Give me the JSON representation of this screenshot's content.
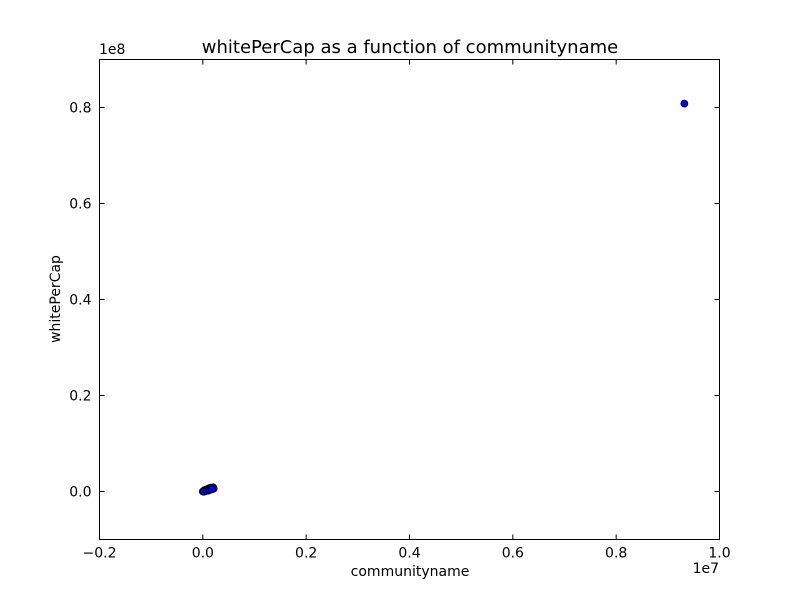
{
  "chart_data": {
    "type": "scatter",
    "title": "whitePerCap as a function of communityname",
    "xlabel": "communityname",
    "ylabel": "whitePerCap",
    "x_multiplier": "1e7",
    "y_multiplier": "1e8",
    "xlim": [
      -2000000,
      10000000
    ],
    "ylim": [
      -10000000,
      90000000
    ],
    "x_ticks": [
      -2000000,
      0,
      2000000,
      4000000,
      6000000,
      8000000,
      10000000
    ],
    "x_tick_labels": [
      "−0.2",
      "0.0",
      "0.2",
      "0.4",
      "0.6",
      "0.8",
      "1.0"
    ],
    "y_ticks": [
      0,
      20000000,
      40000000,
      60000000,
      80000000
    ],
    "y_tick_labels": [
      "0.0",
      "0.2",
      "0.4",
      "0.6",
      "0.8"
    ],
    "grid": false,
    "marker_color": "#0000ff",
    "points": [
      {
        "x": 9320000,
        "y": 80800000
      },
      {
        "x": 0,
        "y": 0
      },
      {
        "x": 15000,
        "y": 100000
      },
      {
        "x": 30000,
        "y": 250000
      },
      {
        "x": 45000,
        "y": 180000
      },
      {
        "x": 60000,
        "y": 350000
      },
      {
        "x": 75000,
        "y": 420000
      },
      {
        "x": 90000,
        "y": 300000
      },
      {
        "x": 100000,
        "y": 550000
      },
      {
        "x": 110000,
        "y": 480000
      },
      {
        "x": 120000,
        "y": 620000
      },
      {
        "x": 130000,
        "y": 700000
      },
      {
        "x": 140000,
        "y": 560000
      },
      {
        "x": 150000,
        "y": 800000
      },
      {
        "x": 160000,
        "y": 650000
      },
      {
        "x": 170000,
        "y": 720000
      },
      {
        "x": 185000,
        "y": 780000
      },
      {
        "x": 200000,
        "y": 850000
      },
      {
        "x": 210000,
        "y": 600000
      },
      {
        "x": 50000,
        "y": 80000
      },
      {
        "x": 20000,
        "y": -50000
      },
      {
        "x": 80000,
        "y": 150000
      },
      {
        "x": 110000,
        "y": 200000
      },
      {
        "x": 140000,
        "y": 350000
      },
      {
        "x": 175000,
        "y": 450000
      }
    ]
  }
}
